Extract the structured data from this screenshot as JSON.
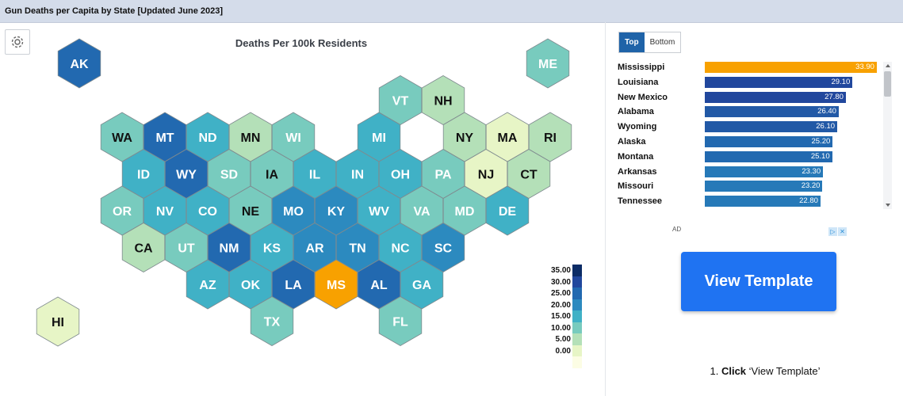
{
  "page_title": "Gun Deaths per Capita by State [Updated June 2023]",
  "toolbar": {
    "settings_icon": "gear-icon"
  },
  "chart_data": {
    "type": "hexmap",
    "title": "Deaths Per 100k Residents",
    "highlight": "MS",
    "highlight_color": "#f8a100",
    "states": [
      {
        "code": "AK",
        "row": 0,
        "col": 0,
        "value": 25.2
      },
      {
        "code": "ME",
        "row": 0,
        "col": 10,
        "value": 14.1
      },
      {
        "code": "VT",
        "row": 1,
        "col": 8.5,
        "value": 14.1
      },
      {
        "code": "NH",
        "row": 1,
        "col": 9.5,
        "value": 8.7
      },
      {
        "code": "WA",
        "row": 2,
        "col": 2,
        "value": 10.1
      },
      {
        "code": "MT",
        "row": 2,
        "col": 3,
        "value": 25.1
      },
      {
        "code": "ND",
        "row": 2,
        "col": 4,
        "value": 17.3
      },
      {
        "code": "MN",
        "row": 2,
        "col": 5,
        "value": 8.5
      },
      {
        "code": "WI",
        "row": 2,
        "col": 6,
        "value": 12.8
      },
      {
        "code": "MI",
        "row": 2,
        "col": 8,
        "value": 15.0
      },
      {
        "code": "NY",
        "row": 2,
        "col": 10,
        "value": 5.4
      },
      {
        "code": "MA",
        "row": 2,
        "col": 11,
        "value": 3.4
      },
      {
        "code": "RI",
        "row": 2,
        "col": 12,
        "value": 5.1
      },
      {
        "code": "ID",
        "row": 3,
        "col": 2.5,
        "value": 17.2
      },
      {
        "code": "WY",
        "row": 3,
        "col": 3.5,
        "value": 26.1
      },
      {
        "code": "SD",
        "row": 3,
        "col": 4.5,
        "value": 13.6
      },
      {
        "code": "IA",
        "row": 3,
        "col": 5.5,
        "value": 11.2
      },
      {
        "code": "IL",
        "row": 3,
        "col": 6.5,
        "value": 16.0
      },
      {
        "code": "IN",
        "row": 3,
        "col": 7.5,
        "value": 17.8
      },
      {
        "code": "OH",
        "row": 3,
        "col": 8.5,
        "value": 15.2
      },
      {
        "code": "PA",
        "row": 3,
        "col": 9.5,
        "value": 13.7
      },
      {
        "code": "NJ",
        "row": 3,
        "col": 10.5,
        "value": 4.6
      },
      {
        "code": "CT",
        "row": 3,
        "col": 11.5,
        "value": 6.6
      },
      {
        "code": "OR",
        "row": 4,
        "col": 2,
        "value": 14.0
      },
      {
        "code": "NV",
        "row": 4,
        "col": 3,
        "value": 18.3
      },
      {
        "code": "CO",
        "row": 4,
        "col": 4,
        "value": 18.0
      },
      {
        "code": "NE",
        "row": 4,
        "col": 5,
        "value": 10.5
      },
      {
        "code": "MO",
        "row": 4,
        "col": 6,
        "value": 23.2
      },
      {
        "code": "KY",
        "row": 4,
        "col": 7,
        "value": 20.1
      },
      {
        "code": "WV",
        "row": 4,
        "col": 8,
        "value": 16.4
      },
      {
        "code": "VA",
        "row": 4,
        "col": 9,
        "value": 14.0
      },
      {
        "code": "MD",
        "row": 4,
        "col": 10,
        "value": 14.1
      },
      {
        "code": "DE",
        "row": 4,
        "col": 11,
        "value": 15.9
      },
      {
        "code": "CA",
        "row": 5,
        "col": 2.5,
        "value": 8.5
      },
      {
        "code": "UT",
        "row": 5,
        "col": 3.5,
        "value": 13.9
      },
      {
        "code": "NM",
        "row": 5,
        "col": 4.5,
        "value": 27.8
      },
      {
        "code": "KS",
        "row": 5,
        "col": 5.5,
        "value": 16.7
      },
      {
        "code": "AR",
        "row": 5,
        "col": 6.5,
        "value": 23.3
      },
      {
        "code": "TN",
        "row": 5,
        "col": 7.5,
        "value": 22.8
      },
      {
        "code": "NC",
        "row": 5,
        "col": 8.5,
        "value": 16.7
      },
      {
        "code": "SC",
        "row": 5,
        "col": 9.5,
        "value": 20.7
      },
      {
        "code": "AZ",
        "row": 6,
        "col": 4,
        "value": 18.8
      },
      {
        "code": "OK",
        "row": 6,
        "col": 5,
        "value": 19.6
      },
      {
        "code": "LA",
        "row": 6,
        "col": 6,
        "value": 29.1
      },
      {
        "code": "MS",
        "row": 6,
        "col": 7,
        "value": 33.9
      },
      {
        "code": "AL",
        "row": 6,
        "col": 8,
        "value": 26.4
      },
      {
        "code": "GA",
        "row": 6,
        "col": 9,
        "value": 18.3
      },
      {
        "code": "TX",
        "row": 7,
        "col": 5.5,
        "value": 14.2
      },
      {
        "code": "FL",
        "row": 7,
        "col": 8.5,
        "value": 13.7
      },
      {
        "code": "HI",
        "row": 7,
        "col": 0,
        "value": 4.5
      }
    ],
    "color_scale": {
      "labels": [
        "35.00",
        "30.00",
        "25.00",
        "20.00",
        "15.00",
        "10.00",
        "5.00",
        "0.00"
      ],
      "colors": [
        "#0c2c66",
        "#21479d",
        "#2269b0",
        "#2c8abf",
        "#40b1c6",
        "#78cbbe",
        "#b4e0b8",
        "#e7f5c6",
        "#fcfde4"
      ]
    }
  },
  "ranking": {
    "tabs": [
      {
        "label": "Top",
        "active": true
      },
      {
        "label": "Bottom",
        "active": false
      }
    ],
    "max": 35,
    "rows": [
      {
        "name": "Mississippi",
        "value": 33.9,
        "label": "33.90",
        "color": "#f8a100"
      },
      {
        "name": "Louisiana",
        "value": 29.1,
        "label": "29.10",
        "color": "#21479d"
      },
      {
        "name": "New Mexico",
        "value": 27.8,
        "label": "27.80",
        "color": "#21479d"
      },
      {
        "name": "Alabama",
        "value": 26.4,
        "label": "26.40",
        "color": "#2259a6"
      },
      {
        "name": "Wyoming",
        "value": 26.1,
        "label": "26.10",
        "color": "#2259a6"
      },
      {
        "name": "Alaska",
        "value": 25.2,
        "label": "25.20",
        "color": "#2269b0"
      },
      {
        "name": "Montana",
        "value": 25.1,
        "label": "25.10",
        "color": "#2269b0"
      },
      {
        "name": "Arkansas",
        "value": 23.3,
        "label": "23.30",
        "color": "#2679b8"
      },
      {
        "name": "Missouri",
        "value": 23.2,
        "label": "23.20",
        "color": "#2679b8"
      },
      {
        "name": "Tennessee",
        "value": 22.8,
        "label": "22.80",
        "color": "#2679b8"
      }
    ]
  },
  "ad": {
    "label": "AD",
    "icons": [
      "ad-choices-icon",
      "ad-close-icon"
    ],
    "button_label": "View Template",
    "instruction_prefix": "1. ",
    "instruction_bold": "Click",
    "instruction_rest": " ‘View Template’"
  }
}
